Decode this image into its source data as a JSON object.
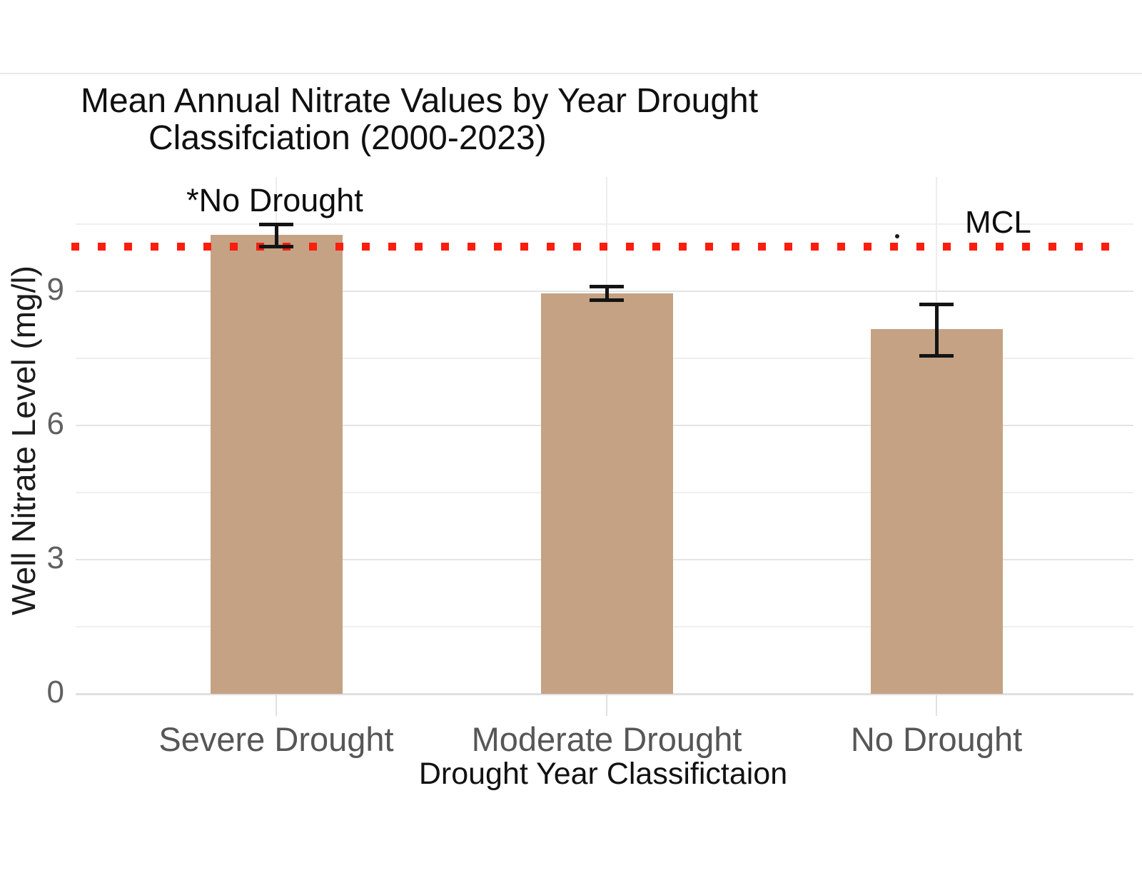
{
  "title": {
    "line1": "Mean Annual Nitrate Values by Year Drought",
    "line2": "Classifciation (2000-2023)"
  },
  "annotations": {
    "no_drought_note": "*No Drought",
    "mcl_label": "MCL"
  },
  "chart_data": {
    "type": "bar",
    "title": "Mean Annual Nitrate Values by Year Drought Classifciation (2000-2023)",
    "xlabel": "Drought Year Classifictaion",
    "ylabel": "Well Nitrate Level (mg/l)",
    "categories": [
      "Severe Drought",
      "Moderate Drought",
      "No Drought"
    ],
    "values": [
      10.25,
      8.95,
      8.15
    ],
    "error_bars": [
      {
        "low": 10.0,
        "high": 10.48
      },
      {
        "low": 8.8,
        "high": 9.1
      },
      {
        "low": 7.55,
        "high": 8.7
      }
    ],
    "yticks": [
      0,
      3,
      6,
      9
    ],
    "ytick_labels": [
      "0",
      "3",
      "6",
      "9"
    ],
    "minor_gridlines": [
      1.5,
      4.5,
      7.5,
      10.5
    ],
    "ylim": [
      0,
      11.55
    ],
    "grid": true,
    "legend": "none",
    "reference_line": {
      "label": "MCL",
      "value": 10,
      "style": "dotted",
      "color": "#fb1d0d"
    },
    "annotation": {
      "text": "*No Drought",
      "target": "Severe Drought"
    },
    "bar_color": "#c5a284"
  },
  "colors": {
    "bar": "#c5a284",
    "reference_line": "#fb1d0d",
    "gridline_major": "#e4e4e4",
    "gridline_minor": "#efefef",
    "baseline": "#e0e0e0",
    "axis_text": "#565656",
    "error_bar": "#141414"
  }
}
